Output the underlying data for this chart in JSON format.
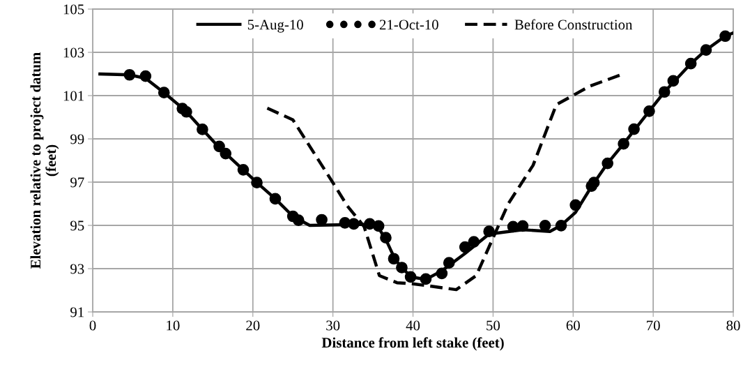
{
  "chart_data": {
    "type": "line",
    "xlabel": "Distance from left stake (feet)",
    "ylabel": "Elevation relative to project datum\n(feet)",
    "xlim": [
      0,
      80
    ],
    "xticks": [
      0,
      10,
      20,
      30,
      40,
      50,
      60,
      70,
      80
    ],
    "ylim": [
      91,
      105
    ],
    "yticks": [
      91,
      93,
      95,
      97,
      99,
      101,
      103,
      105
    ],
    "grid": true,
    "legend": "top",
    "series": [
      {
        "name": "5-Aug-10",
        "color": "#000000",
        "marker": "none",
        "line_style": "solid",
        "x": [
          0.9,
          4.6,
          6.6,
          8.9,
          11.5,
          13.7,
          15.8,
          18.8,
          20.5,
          22.8,
          25.0,
          27.1,
          34.6,
          35.7,
          36.8,
          37.8,
          39.7,
          41.6,
          43.6,
          46.5,
          49.5,
          53.7,
          57.1,
          58.5,
          60.3,
          62.3,
          64.3,
          66.3,
          69.5,
          71.4,
          74.7,
          76.6,
          79.0,
          80.0
        ],
        "values": [
          102.0,
          101.96,
          101.8,
          101.14,
          100.33,
          99.44,
          98.6,
          97.57,
          96.98,
          96.23,
          95.42,
          95.0,
          95.05,
          94.9,
          94.2,
          93.4,
          92.62,
          92.5,
          92.9,
          93.7,
          94.6,
          94.8,
          94.72,
          95.0,
          95.6,
          96.8,
          97.87,
          98.77,
          100.28,
          101.17,
          102.48,
          103.11,
          103.75,
          103.9
        ]
      },
      {
        "name": "21-Oct-10",
        "type": "scatter",
        "color": "#000000",
        "marker": "circle",
        "x": [
          4.6,
          6.6,
          8.9,
          11.2,
          11.7,
          13.7,
          15.8,
          16.6,
          18.8,
          20.5,
          22.8,
          25.0,
          25.7,
          28.6,
          31.5,
          32.6,
          34.6,
          35.7,
          36.6,
          37.6,
          38.6,
          39.7,
          41.6,
          43.6,
          44.5,
          46.5,
          47.6,
          49.5,
          52.5,
          53.7,
          56.5,
          58.5,
          60.3,
          62.3,
          62.6,
          64.3,
          66.3,
          67.6,
          69.5,
          71.4,
          72.5,
          74.7,
          76.6,
          79.0
        ],
        "values": [
          101.96,
          101.9,
          101.14,
          100.4,
          100.25,
          99.44,
          98.65,
          98.32,
          97.57,
          96.98,
          96.23,
          95.42,
          95.24,
          95.26,
          95.12,
          95.07,
          95.07,
          94.97,
          94.43,
          93.46,
          93.05,
          92.62,
          92.52,
          92.78,
          93.27,
          94.0,
          94.24,
          94.72,
          94.94,
          94.97,
          94.99,
          94.99,
          95.94,
          96.82,
          96.98,
          97.87,
          98.77,
          99.45,
          100.28,
          101.17,
          101.68,
          102.48,
          103.11,
          103.75
        ]
      },
      {
        "name": "Before Construction",
        "color": "#000000",
        "marker": "none",
        "line_style": "dashed",
        "x": [
          21.8,
          25.0,
          29.9,
          31.8,
          33.1,
          33.9,
          35.8,
          38.0,
          40.0,
          45.4,
          47.9,
          51.9,
          55.0,
          57.9,
          62.1,
          66.1
        ],
        "values": [
          100.42,
          99.88,
          97.03,
          95.9,
          95.31,
          94.94,
          92.68,
          92.35,
          92.3,
          92.03,
          92.68,
          96.0,
          97.78,
          100.58,
          101.44,
          101.98
        ]
      }
    ]
  }
}
